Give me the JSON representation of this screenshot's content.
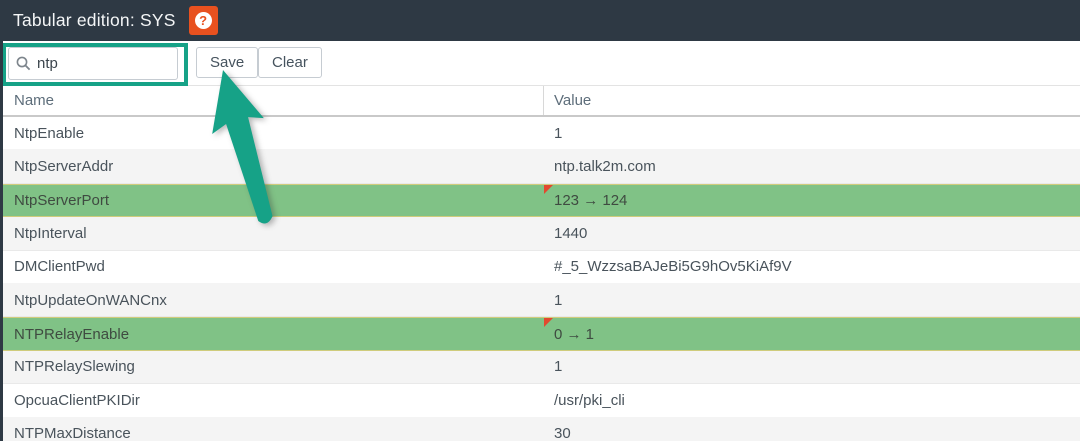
{
  "header": {
    "title": "Tabular edition: SYS",
    "help_glyph": "?"
  },
  "toolbar": {
    "search": {
      "value": "ntp",
      "placeholder": "",
      "icon": "search-icon"
    },
    "save_label": "Save",
    "clear_label": "Clear"
  },
  "table": {
    "columns": [
      "Name",
      "Value"
    ],
    "rows": [
      {
        "name": "NtpEnable",
        "value": "1",
        "changed": false
      },
      {
        "name": "NtpServerAddr",
        "value": "ntp.talk2m.com",
        "changed": false
      },
      {
        "name": "NtpServerPort",
        "value": "123 → 124",
        "changed": true
      },
      {
        "name": "NtpInterval",
        "value": "1440",
        "changed": false
      },
      {
        "name": "DMClientPwd",
        "value": "#_5_WzzsaBAJeBi5G9hOv5KiAf9V",
        "changed": false
      },
      {
        "name": "NtpUpdateOnWANCnx",
        "value": "1",
        "changed": false
      },
      {
        "name": "NTPRelayEnable",
        "value": "0 → 1",
        "changed": true
      },
      {
        "name": "NTPRelaySlewing",
        "value": "1",
        "changed": false
      },
      {
        "name": "OpcuaClientPKIDir",
        "value": "/usr/pki_cli",
        "changed": false
      },
      {
        "name": "NTPMaxDistance",
        "value": "30",
        "changed": false
      }
    ]
  },
  "colors": {
    "header_bg": "#2e3944",
    "help_button": "#e8511f",
    "annotation_teal": "#16a287",
    "changed_row_green": "#80c286",
    "changed_marker_red": "#e2492f",
    "alt_row_gray": "#f4f4f4"
  }
}
